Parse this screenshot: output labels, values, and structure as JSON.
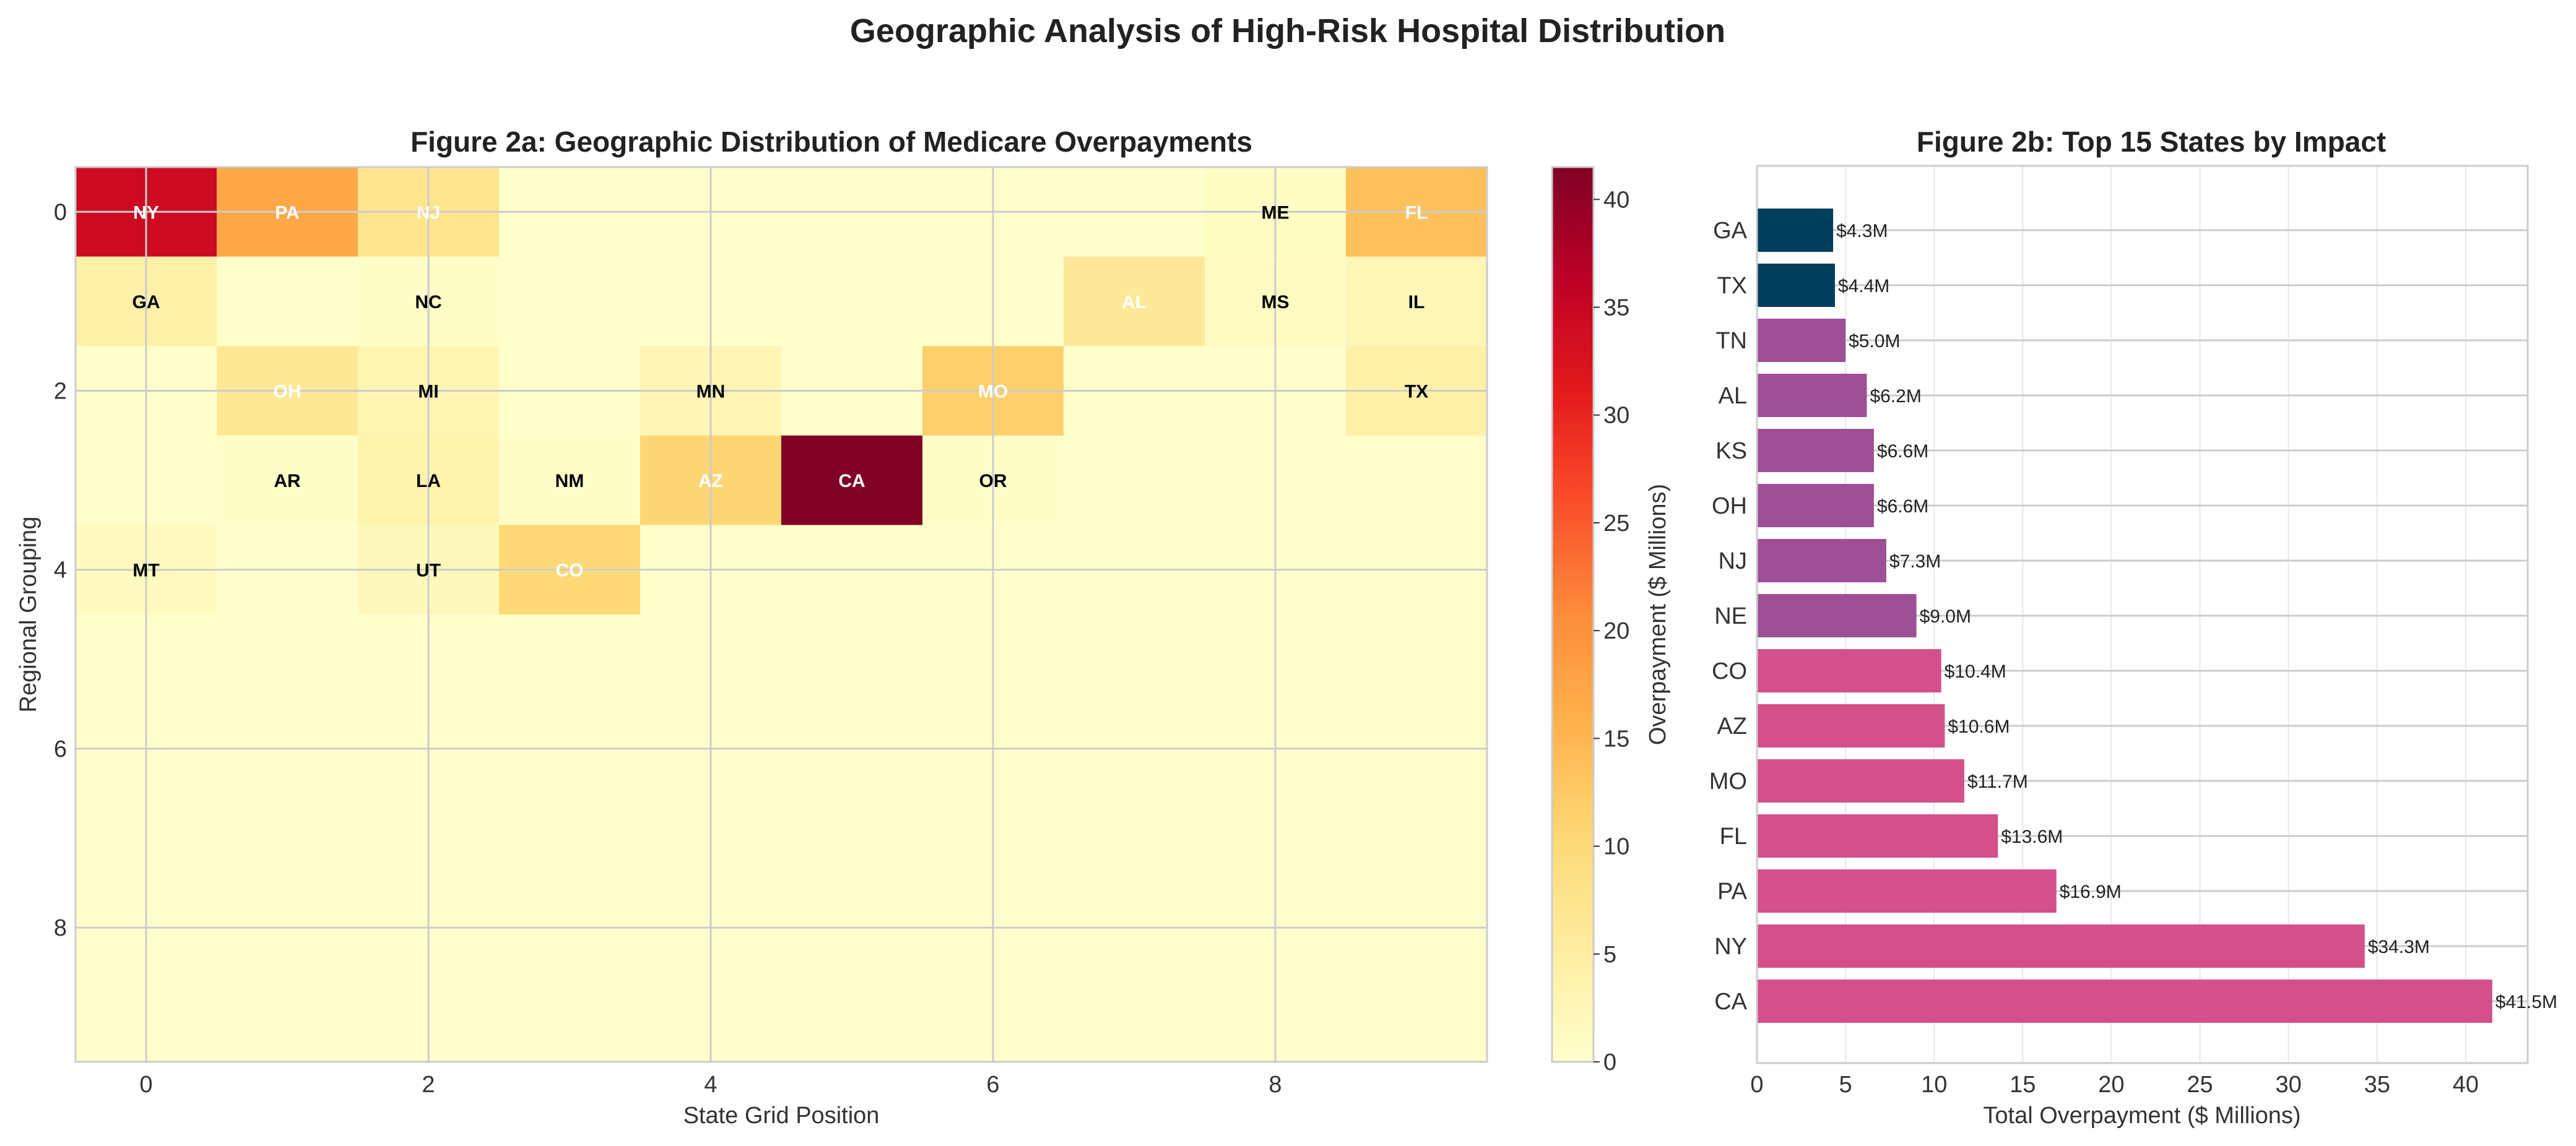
{
  "suptitle": "Geographic Analysis of High-Risk Hospital Distribution",
  "chart_data": [
    {
      "type": "heatmap",
      "title": "Figure 2a: Geographic Distribution of Medicare Overpayments",
      "xlabel": "State Grid Position",
      "ylabel": "Regional Grouping",
      "xticks": [
        "0",
        "2",
        "4",
        "6",
        "8"
      ],
      "yticks": [
        "0",
        "2",
        "4",
        "6",
        "8"
      ],
      "rows": 10,
      "cols": 10,
      "colormap": "YlOrRd",
      "colorbar": {
        "label": "Overpayment ($ Millions)",
        "range": [
          0,
          41.5
        ],
        "ticks": [
          "0",
          "5",
          "10",
          "15",
          "20",
          "25",
          "30",
          "35",
          "40"
        ]
      },
      "cells": [
        {
          "row": 0,
          "col": 0,
          "state": "NY",
          "value": 34.3
        },
        {
          "row": 0,
          "col": 1,
          "state": "PA",
          "value": 16.9
        },
        {
          "row": 0,
          "col": 2,
          "state": "NJ",
          "value": 7.3
        },
        {
          "row": 0,
          "col": 8,
          "state": "ME",
          "value": 1.0
        },
        {
          "row": 0,
          "col": 9,
          "state": "FL",
          "value": 13.6
        },
        {
          "row": 1,
          "col": 0,
          "state": "GA",
          "value": 4.3
        },
        {
          "row": 1,
          "col": 2,
          "state": "NC",
          "value": 0.5
        },
        {
          "row": 1,
          "col": 7,
          "state": "AL",
          "value": 6.2
        },
        {
          "row": 1,
          "col": 8,
          "state": "MS",
          "value": 1.2
        },
        {
          "row": 1,
          "col": 9,
          "state": "IL",
          "value": 2.5
        },
        {
          "row": 2,
          "col": 1,
          "state": "OH",
          "value": 6.6
        },
        {
          "row": 2,
          "col": 2,
          "state": "MI",
          "value": 3.0
        },
        {
          "row": 2,
          "col": 4,
          "state": "MN",
          "value": 2.8
        },
        {
          "row": 2,
          "col": 6,
          "state": "MO",
          "value": 11.7
        },
        {
          "row": 2,
          "col": 9,
          "state": "TX",
          "value": 4.4
        },
        {
          "row": 3,
          "col": 1,
          "state": "AR",
          "value": 0.5
        },
        {
          "row": 3,
          "col": 2,
          "state": "LA",
          "value": 3.5
        },
        {
          "row": 3,
          "col": 3,
          "state": "NM",
          "value": 0.3
        },
        {
          "row": 3,
          "col": 4,
          "state": "AZ",
          "value": 10.6
        },
        {
          "row": 3,
          "col": 5,
          "state": "CA",
          "value": 41.5
        },
        {
          "row": 3,
          "col": 6,
          "state": "OR",
          "value": 0.3
        },
        {
          "row": 4,
          "col": 0,
          "state": "MT",
          "value": 1.5
        },
        {
          "row": 4,
          "col": 2,
          "state": "UT",
          "value": 2.0
        },
        {
          "row": 4,
          "col": 3,
          "state": "CO",
          "value": 10.4
        }
      ],
      "white_text_states": [
        "NY",
        "PA",
        "NJ",
        "FL",
        "AL",
        "OH",
        "MO",
        "AZ",
        "CA",
        "CO"
      ],
      "grid": true
    },
    {
      "type": "bar",
      "orientation": "horizontal",
      "title": "Figure 2b: Top 15 States by Impact",
      "xlabel": "Total Overpayment ($ Millions)",
      "ylabel": "",
      "xlim": [
        0,
        43.5
      ],
      "xticks": [
        "0",
        "5",
        "10",
        "15",
        "20",
        "25",
        "30",
        "35",
        "40"
      ],
      "categories": [
        "GA",
        "TX",
        "TN",
        "AL",
        "KS",
        "OH",
        "NJ",
        "NE",
        "CO",
        "AZ",
        "MO",
        "FL",
        "PA",
        "NY",
        "CA"
      ],
      "values": [
        4.3,
        4.4,
        5.0,
        6.2,
        6.6,
        6.6,
        7.3,
        9.0,
        10.4,
        10.6,
        11.7,
        13.6,
        16.9,
        34.3,
        41.5
      ],
      "value_labels": [
        "$4.3M",
        "$4.4M",
        "$5.0M",
        "$6.2M",
        "$6.6M",
        "$6.6M",
        "$7.3M",
        "$9.0M",
        "$10.4M",
        "$10.6M",
        "$11.7M",
        "$13.6M",
        "$16.9M",
        "$34.3M",
        "$41.5M"
      ],
      "colors": [
        "#003f5c",
        "#003f5c",
        "#9e4f96",
        "#9e4f96",
        "#9e4f96",
        "#9e4f96",
        "#9e4f96",
        "#9e4f96",
        "#d4508a",
        "#d4508a",
        "#d4508a",
        "#d4508a",
        "#d4508a",
        "#d4508a",
        "#d4508a"
      ],
      "grid": true
    }
  ]
}
